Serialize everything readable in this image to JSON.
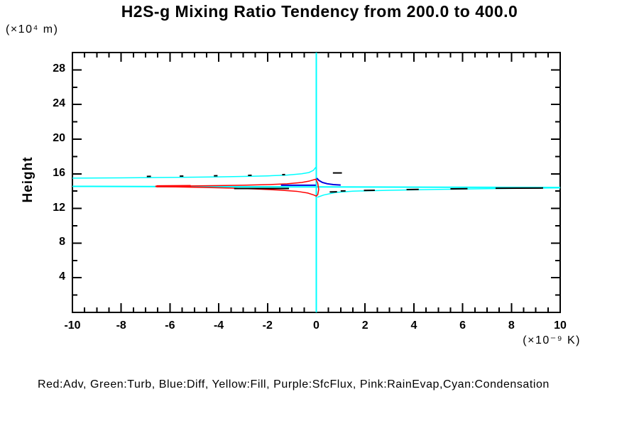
{
  "chart_data": {
    "type": "line",
    "title": "H2S-g Mixing Ratio Tendency from 200.0 to 400.0",
    "ylabel": "Height",
    "y_axis_unit": "(×10⁴ m)",
    "x_axis_unit": "(×10⁻⁹ K)",
    "xlim": [
      -10,
      10
    ],
    "ylim": [
      0,
      30
    ],
    "grid": false,
    "x_ticks": {
      "major": [
        -10,
        -8,
        -6,
        -4,
        -2,
        0,
        2,
        4,
        6,
        8,
        10
      ],
      "labels": [
        "-10",
        "-8",
        "-6",
        "-4",
        "-2",
        "0",
        "2",
        "4",
        "6",
        "8",
        "10"
      ],
      "minor_step": 0.5
    },
    "y_ticks": {
      "major": [
        4,
        8,
        12,
        16,
        20,
        24,
        28
      ],
      "labels": [
        "4",
        "8",
        "12",
        "16",
        "20",
        "24",
        "28"
      ],
      "minor_step": 2
    },
    "legend": {
      "position": "bottom",
      "text": "Red:Adv, Green:Turb, Blue:Diff, Yellow:Fill, Purple:SfcFlux, Pink:RainEvap,Cyan:Condensation"
    },
    "colors": {
      "background": "#ffffff",
      "axis": "#000000",
      "condensation": "#00ffff",
      "adv": "#ff0000",
      "diff": "#0000dd",
      "dashes": "#000000"
    },
    "series": [
      {
        "name": "condensation-vertical-line",
        "color_key": "condensation",
        "width": 2,
        "points": [
          [
            0,
            0
          ],
          [
            0,
            30
          ]
        ]
      },
      {
        "name": "condensation-center-line",
        "color_key": "condensation",
        "width": 2,
        "points": [
          [
            -10,
            14.55
          ],
          [
            10,
            14.42
          ]
        ]
      },
      {
        "name": "condensation-upper-branch",
        "color_key": "condensation",
        "width": 1.5,
        "points": [
          [
            -10,
            15.5
          ],
          [
            -8,
            15.53
          ],
          [
            -6,
            15.58
          ],
          [
            -4,
            15.65
          ],
          [
            -3,
            15.7
          ],
          [
            -2,
            15.76
          ],
          [
            -1.2,
            15.85
          ],
          [
            -0.6,
            16.0
          ],
          [
            -0.3,
            16.15
          ],
          [
            -0.12,
            16.4
          ],
          [
            -0.02,
            16.75
          ]
        ]
      },
      {
        "name": "condensation-lower-branch",
        "color_key": "condensation",
        "width": 1.5,
        "points": [
          [
            0.05,
            13.3
          ],
          [
            0.3,
            13.55
          ],
          [
            0.8,
            13.85
          ],
          [
            1.5,
            14.0
          ],
          [
            3.0,
            14.1
          ],
          [
            5.0,
            14.2
          ],
          [
            7.0,
            14.28
          ],
          [
            10,
            14.38
          ]
        ]
      },
      {
        "name": "adv-envelope",
        "color_key": "adv",
        "width": 1.5,
        "points": [
          [
            -6.6,
            14.57
          ],
          [
            -5.2,
            14.6
          ],
          [
            -4,
            14.64
          ],
          [
            -3,
            14.68
          ],
          [
            -2,
            14.75
          ],
          [
            -1.2,
            14.85
          ],
          [
            -0.6,
            15.0
          ],
          [
            -0.3,
            15.15
          ],
          [
            -0.1,
            15.32
          ],
          [
            -0.02,
            15.38
          ],
          [
            0.06,
            14.9
          ],
          [
            0.1,
            14.2
          ],
          [
            0.06,
            13.6
          ],
          [
            0.0,
            13.42
          ],
          [
            -0.1,
            13.55
          ],
          [
            -0.35,
            13.78
          ],
          [
            -0.8,
            13.98
          ],
          [
            -1.5,
            14.12
          ],
          [
            -2.5,
            14.25
          ],
          [
            -3.5,
            14.35
          ],
          [
            -4.8,
            14.44
          ],
          [
            -6.0,
            14.5
          ],
          [
            -6.6,
            14.54
          ]
        ]
      },
      {
        "name": "adv-bold-segment",
        "color_key": "adv",
        "width": 3,
        "points": [
          [
            -6.55,
            14.56
          ],
          [
            -5.15,
            14.59
          ]
        ]
      },
      {
        "name": "diff-left-segment",
        "color_key": "diff",
        "width": 2,
        "points": [
          [
            -1.45,
            14.68
          ],
          [
            -0.02,
            14.68
          ]
        ]
      },
      {
        "name": "diff-right-spike",
        "color_key": "diff",
        "width": 2,
        "points": [
          [
            0.02,
            15.5
          ],
          [
            0.1,
            15.25
          ],
          [
            0.25,
            15.0
          ],
          [
            0.45,
            14.85
          ],
          [
            0.7,
            14.75
          ],
          [
            1.0,
            14.7
          ]
        ]
      }
    ],
    "dashed_overlay": {
      "name": "black-dashed-overlay",
      "color_key": "dashes",
      "width": 2,
      "segments": [
        [
          -6.95,
          15.7,
          -6.78,
          15.71
        ],
        [
          -5.6,
          15.73,
          -5.45,
          15.74
        ],
        [
          -4.2,
          15.77,
          -4.05,
          15.78
        ],
        [
          -2.8,
          15.82,
          -2.65,
          15.83
        ],
        [
          -1.4,
          15.9,
          -1.28,
          15.91
        ],
        [
          0.68,
          16.1,
          1.05,
          16.1
        ],
        [
          -3.37,
          14.3,
          -1.12,
          14.3
        ],
        [
          0.55,
          13.9,
          0.85,
          13.92
        ],
        [
          1.0,
          14.02,
          1.2,
          14.03
        ],
        [
          1.95,
          14.08,
          2.4,
          14.1
        ],
        [
          3.7,
          14.18,
          4.2,
          14.2
        ],
        [
          5.5,
          14.26,
          6.2,
          14.28
        ],
        [
          7.35,
          14.33,
          9.3,
          14.36
        ]
      ]
    }
  }
}
